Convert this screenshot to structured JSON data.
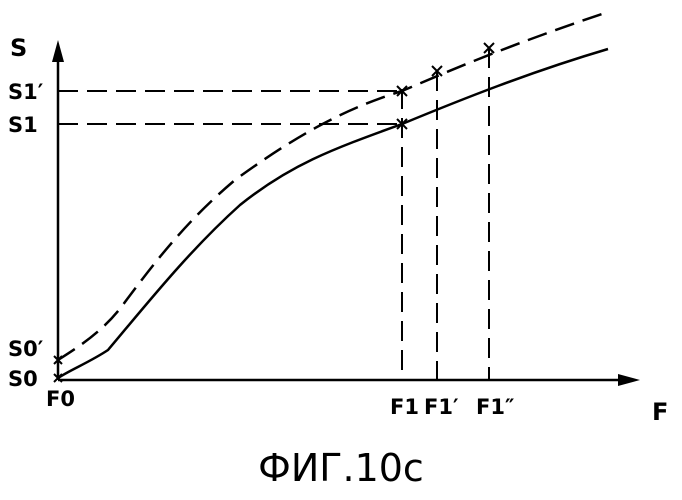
{
  "figure": {
    "caption": "ФИГ.10с",
    "y_axis_label": "S",
    "x_axis_label": "F",
    "y_ticks": {
      "s1_prime": "S1′",
      "s1": "S1",
      "s0_prime": "S0′",
      "s0": "S0"
    },
    "x_ticks": {
      "f0": "F0",
      "f1": "F1",
      "f1_prime": "F1′",
      "f1_double_prime": "F1″"
    }
  },
  "chart_data": {
    "type": "line",
    "title": "",
    "xlabel": "F",
    "ylabel": "S",
    "series": [
      {
        "style": "solid"
      },
      {
        "style": "dashed"
      }
    ],
    "x_markers": [
      "F1",
      "F1′",
      "F1″"
    ],
    "y_markers": [
      "S0",
      "S0′",
      "S1",
      "S1′"
    ],
    "grid": false
  }
}
